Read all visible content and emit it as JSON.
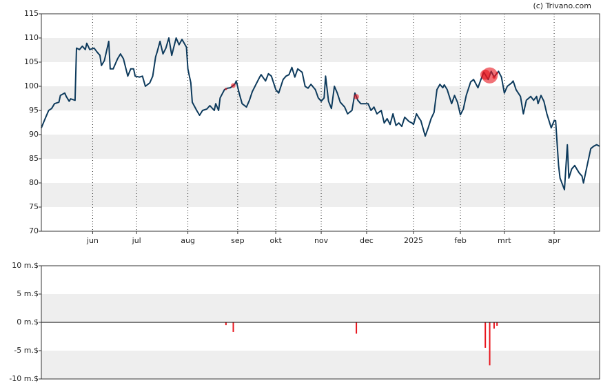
{
  "chart_data": [
    {
      "type": "line",
      "source": "(c) Trivano.com",
      "color": "#0d3a5c",
      "grid": true,
      "bands": true,
      "xlim": [
        0,
        381
      ],
      "ylim": [
        70,
        115
      ],
      "yticks": [
        70,
        75,
        80,
        85,
        90,
        95,
        100,
        105,
        110,
        115
      ],
      "xticks": [
        {
          "value": 35,
          "label": "jun"
        },
        {
          "value": 65,
          "label": "jul"
        },
        {
          "value": 100,
          "label": "aug"
        },
        {
          "value": 134,
          "label": "sep"
        },
        {
          "value": 160,
          "label": "okt"
        },
        {
          "value": 191,
          "label": "nov"
        },
        {
          "value": 222,
          "label": "dec"
        },
        {
          "value": 254,
          "label": "2025"
        },
        {
          "value": 286,
          "label": "feb"
        },
        {
          "value": 316,
          "label": "mrt"
        },
        {
          "value": 350,
          "label": "apr"
        }
      ],
      "x": [
        0,
        2,
        5,
        7,
        9,
        12,
        13,
        16,
        17,
        19,
        20,
        23,
        24,
        26,
        28,
        30,
        31,
        33,
        36,
        38,
        40,
        41,
        43,
        46,
        47,
        49,
        52,
        54,
        56,
        59,
        61,
        63,
        64,
        67,
        69,
        71,
        74,
        76,
        78,
        79,
        81,
        83,
        85,
        87,
        89,
        90,
        92,
        94,
        96,
        99,
        100,
        102,
        103,
        106,
        108,
        110,
        113,
        115,
        118,
        119,
        121,
        122,
        125,
        127,
        129,
        132,
        133,
        135,
        137,
        140,
        142,
        144,
        147,
        149,
        150,
        153,
        155,
        157,
        160,
        162,
        165,
        167,
        169,
        171,
        173,
        175,
        178,
        180,
        182,
        184,
        187,
        189,
        191,
        193,
        194,
        196,
        198,
        200,
        202,
        204,
        207,
        209,
        212,
        214,
        216,
        218,
        220,
        223,
        225,
        227,
        229,
        232,
        234,
        236,
        238,
        240,
        242,
        244,
        246,
        248,
        251,
        253,
        254,
        256,
        258,
        259,
        262,
        264,
        266,
        268,
        270,
        272,
        274,
        275,
        277,
        280,
        282,
        284,
        286,
        288,
        290,
        293,
        295,
        298,
        300,
        302,
        305,
        307,
        309,
        312,
        314,
        316,
        318,
        321,
        322,
        324,
        327,
        329,
        331,
        334,
        336,
        338,
        339,
        341,
        343,
        345,
        348,
        350,
        351,
        353,
        354,
        357,
        359,
        360,
        362,
        364,
        367,
        369,
        370,
        372,
        375,
        377,
        379,
        381
      ],
      "values": [
        91.4,
        92.9,
        95,
        95.4,
        96.4,
        96.7,
        98.1,
        98.6,
        97.9,
        96.9,
        97.4,
        97.1,
        107.9,
        107.6,
        108.3,
        107.6,
        108.9,
        107.6,
        107.9,
        107.1,
        106.4,
        104.3,
        105.3,
        109.3,
        103.6,
        103.6,
        105.7,
        106.7,
        105.7,
        102.1,
        103.6,
        103.6,
        102.1,
        101.9,
        102.1,
        100,
        100.7,
        102.1,
        106.1,
        107.1,
        109.3,
        106.7,
        107.9,
        110,
        106.4,
        107.6,
        110,
        108.6,
        109.7,
        108.1,
        103.6,
        100.7,
        96.7,
        95,
        94,
        95,
        95.3,
        96,
        95,
        96.4,
        95,
        97.6,
        99.3,
        99.6,
        99.7,
        100.4,
        101.1,
        98.6,
        96.4,
        95.7,
        97.1,
        98.9,
        100.7,
        101.9,
        102.4,
        101.1,
        102.6,
        102.1,
        99.3,
        98.6,
        101.4,
        102.1,
        102.4,
        103.9,
        101.9,
        103.6,
        102.9,
        100,
        99.6,
        100.4,
        99.3,
        97.6,
        96.9,
        97.6,
        102.1,
        96.9,
        95.4,
        100,
        98.6,
        96.7,
        95.7,
        94.3,
        95,
        98.6,
        97.1,
        96.4,
        96.4,
        96.4,
        95,
        95.7,
        94.3,
        95,
        92.4,
        93.3,
        92.1,
        94.3,
        91.9,
        92.4,
        91.7,
        93.6,
        92.7,
        92.4,
        92.1,
        94.3,
        93.3,
        92.9,
        89.7,
        91.4,
        93.3,
        94.6,
        99.3,
        100.4,
        99.7,
        100.3,
        99.3,
        96.4,
        98.1,
        96.7,
        94.1,
        95.3,
        98.1,
        100.9,
        101.4,
        99.7,
        101.4,
        102.9,
        101.4,
        103.1,
        101.9,
        103.1,
        101.9,
        98.6,
        100,
        100.7,
        101.1,
        99.3,
        97.9,
        94.3,
        97.1,
        97.9,
        97.1,
        97.9,
        96.4,
        98.1,
        96.9,
        94.3,
        91.4,
        92.9,
        92.9,
        83.6,
        81,
        78.6,
        87.9,
        81,
        82.9,
        83.6,
        82.1,
        81.4,
        80,
        82.9,
        87.1,
        87.6,
        87.9,
        87.6
      ]
    },
    {
      "type": "bar",
      "color": "#e8141c",
      "grid": false,
      "bands": true,
      "xlim": [
        0,
        381
      ],
      "ylim": [
        -10,
        10
      ],
      "yticks": [
        {
          "value": -10,
          "label": "-10 m.$"
        },
        {
          "value": -5,
          "label": "-5 m.$"
        },
        {
          "value": 0,
          "label": "0 m.$"
        },
        {
          "value": 5,
          "label": "5 m.$"
        },
        {
          "value": 10,
          "label": "10 m.$"
        }
      ],
      "x": [
        126,
        131,
        215,
        303,
        306,
        309,
        311
      ],
      "values": [
        -0.5,
        -1.7,
        -2,
        -4.5,
        -7.6,
        -1.1,
        -0.6
      ]
    }
  ]
}
